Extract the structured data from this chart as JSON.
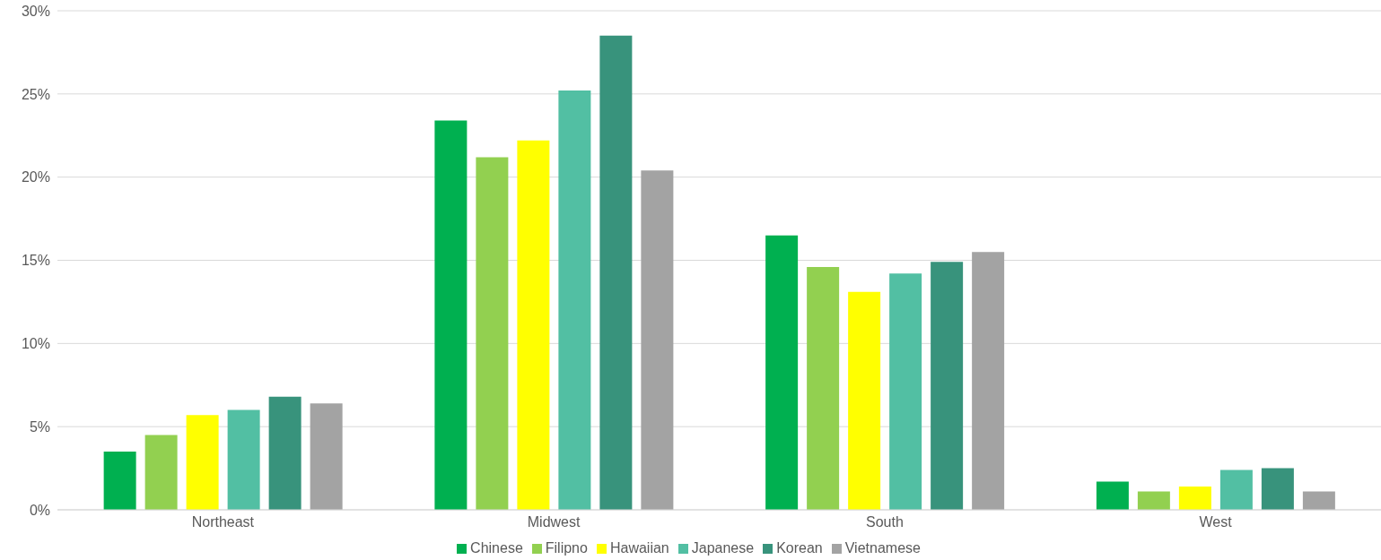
{
  "chart_data": {
    "type": "bar",
    "categories": [
      "Northeast",
      "Midwest",
      "South",
      "West"
    ],
    "series": [
      {
        "name": "Chinese",
        "color": "#00b050",
        "values": [
          3.5,
          23.4,
          16.5,
          1.7
        ]
      },
      {
        "name": "Filipno",
        "color": "#92d050",
        "values": [
          4.5,
          21.2,
          14.6,
          1.1
        ]
      },
      {
        "name": "Hawaiian",
        "color": "#ffff00",
        "values": [
          5.7,
          22.2,
          13.1,
          1.4
        ]
      },
      {
        "name": "Japanese",
        "color": "#52bfa3",
        "values": [
          6.0,
          25.2,
          14.2,
          2.4
        ]
      },
      {
        "name": "Korean",
        "color": "#38937c",
        "values": [
          6.8,
          28.5,
          14.9,
          2.5
        ]
      },
      {
        "name": "Vietnamese",
        "color": "#a3a3a3",
        "values": [
          6.4,
          20.4,
          15.5,
          1.1
        ]
      }
    ],
    "ylim": [
      0,
      30
    ],
    "yticks": [
      {
        "value": 0,
        "label": "0%"
      },
      {
        "value": 5,
        "label": "5%"
      },
      {
        "value": 10,
        "label": "10%"
      },
      {
        "value": 15,
        "label": "15%"
      },
      {
        "value": 20,
        "label": "20%"
      },
      {
        "value": 25,
        "label": "25%"
      },
      {
        "value": 30,
        "label": "30%"
      }
    ],
    "grid": "y",
    "legend": "bottom"
  }
}
